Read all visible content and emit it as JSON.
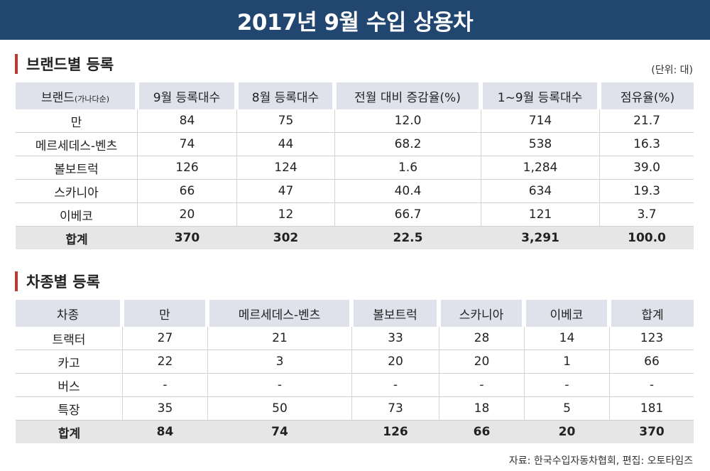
{
  "title": "2017년 9월 수입 상용차",
  "section1": {
    "heading": "브랜드별 등록",
    "unit": "(단위: 대)",
    "headers": {
      "brand": "브랜드",
      "brand_note": "(가나다순)",
      "sep": "9월 등록대수",
      "aug": "8월 등록대수",
      "change": "전월 대비 증감율(%)",
      "ytd": "1~9월 등록대수",
      "share": "점유율(%)"
    },
    "rows": [
      {
        "brand": "만",
        "sep": "84",
        "aug": "75",
        "change": "12.0",
        "ytd": "714",
        "share": "21.7"
      },
      {
        "brand": "메르세데스-벤츠",
        "sep": "74",
        "aug": "44",
        "change": "68.2",
        "ytd": "538",
        "share": "16.3"
      },
      {
        "brand": "볼보트럭",
        "sep": "126",
        "aug": "124",
        "change": "1.6",
        "ytd": "1,284",
        "share": "39.0"
      },
      {
        "brand": "스카니아",
        "sep": "66",
        "aug": "47",
        "change": "40.4",
        "ytd": "634",
        "share": "19.3"
      },
      {
        "brand": "이베코",
        "sep": "20",
        "aug": "12",
        "change": "66.7",
        "ytd": "121",
        "share": "3.7"
      }
    ],
    "total": {
      "brand": "합계",
      "sep": "370",
      "aug": "302",
      "change": "22.5",
      "ytd": "3,291",
      "share": "100.0"
    }
  },
  "section2": {
    "heading": "차종별 등록",
    "headers": {
      "type": "차종",
      "man": "만",
      "benz": "메르세데스-벤츠",
      "volvo": "볼보트럭",
      "scania": "스카니아",
      "iveco": "이베코",
      "total": "합계"
    },
    "rows": [
      {
        "type": "트랙터",
        "man": "27",
        "benz": "21",
        "volvo": "33",
        "scania": "28",
        "iveco": "14",
        "total": "123"
      },
      {
        "type": "카고",
        "man": "22",
        "benz": "3",
        "volvo": "20",
        "scania": "20",
        "iveco": "1",
        "total": "66"
      },
      {
        "type": "버스",
        "man": "-",
        "benz": "-",
        "volvo": "-",
        "scania": "-",
        "iveco": "-",
        "total": "-"
      },
      {
        "type": "특장",
        "man": "35",
        "benz": "50",
        "volvo": "73",
        "scania": "18",
        "iveco": "5",
        "total": "181"
      }
    ],
    "total": {
      "type": "합계",
      "man": "84",
      "benz": "74",
      "volvo": "126",
      "scania": "66",
      "iveco": "20",
      "total": "370"
    }
  },
  "source": "자료: 한국수입자동차협회,  편집: 오토타임즈"
}
